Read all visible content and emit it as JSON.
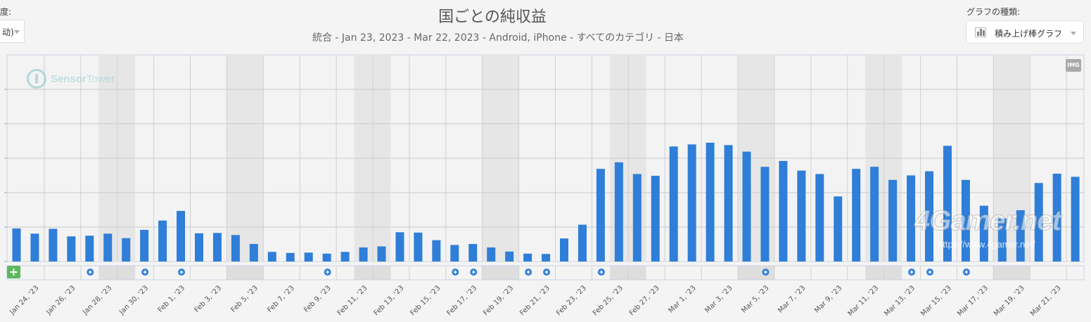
{
  "controls": {
    "left_label": "度:",
    "left_value": "动)",
    "right_label": "グラフの種類:",
    "right_value": "積み上げ棒グラフ"
  },
  "logo": {
    "brand": "Sensor",
    "brand_suffix": "Tower"
  },
  "img_badge": "IMG",
  "add_button": "+",
  "watermark": {
    "text": "4Gamer.net",
    "url": "https://www.4gamer.net/"
  },
  "colors": {
    "bar": "#2f7ed8",
    "event_marker": "#2f7ed8",
    "add_button": "#5cb85c",
    "weekend_band": "#e6e6e6"
  },
  "chart_data": {
    "type": "bar",
    "title": "国ごとの純収益",
    "subtitle": "統合 - Jan 23, 2023 - Mar 22, 2023 - Android, iPhone - すべてのカテゴリ - 日本",
    "xlabel": "",
    "ylabel": "",
    "grid": true,
    "y_tick_labels_visible": false,
    "ylim": [
      0,
      6
    ],
    "yticks": [
      0,
      1,
      2,
      3,
      4,
      5
    ],
    "categories": [
      "Jan 23",
      "Jan 24",
      "Jan 25",
      "Jan 26",
      "Jan 27",
      "Jan 28",
      "Jan 29",
      "Jan 30",
      "Jan 31",
      "Feb 1",
      "Feb 2",
      "Feb 3",
      "Feb 4",
      "Feb 5",
      "Feb 6",
      "Feb 7",
      "Feb 8",
      "Feb 9",
      "Feb 10",
      "Feb 11",
      "Feb 12",
      "Feb 13",
      "Feb 14",
      "Feb 15",
      "Feb 16",
      "Feb 17",
      "Feb 18",
      "Feb 19",
      "Feb 20",
      "Feb 21",
      "Feb 22",
      "Feb 23",
      "Feb 24",
      "Feb 25",
      "Feb 26",
      "Feb 27",
      "Feb 28",
      "Mar 1",
      "Mar 2",
      "Mar 3",
      "Mar 4",
      "Mar 5",
      "Mar 6",
      "Mar 7",
      "Mar 8",
      "Mar 9",
      "Mar 10",
      "Mar 11",
      "Mar 12",
      "Mar 13",
      "Mar 14",
      "Mar 15",
      "Mar 16",
      "Mar 17",
      "Mar 18",
      "Mar 19",
      "Mar 20",
      "Mar 21",
      "Mar 22"
    ],
    "values": [
      0.96,
      0.81,
      0.95,
      0.73,
      0.75,
      0.81,
      0.68,
      0.92,
      1.19,
      1.47,
      0.82,
      0.83,
      0.77,
      0.51,
      0.28,
      0.25,
      0.26,
      0.23,
      0.28,
      0.41,
      0.44,
      0.85,
      0.84,
      0.62,
      0.48,
      0.51,
      0.41,
      0.29,
      0.23,
      0.22,
      0.67,
      1.07,
      2.69,
      2.88,
      2.54,
      2.49,
      3.34,
      3.4,
      3.45,
      3.38,
      3.19,
      2.75,
      2.92,
      2.64,
      2.54,
      1.89,
      2.69,
      2.75,
      2.37,
      2.5,
      2.62,
      3.36,
      2.37,
      1.62,
      1.25,
      1.49,
      2.28,
      2.55,
      2.46
    ],
    "x_tick_labels": [
      "Jan 24, '23",
      "Jan 26, '23",
      "Jan 28, '23",
      "Jan 30, '23",
      "Feb 1, '23",
      "Feb 3, '23",
      "Feb 5, '23",
      "Feb 7, '23",
      "Feb 9, '23",
      "Feb 11, '23",
      "Feb 13, '23",
      "Feb 15, '23",
      "Feb 17, '23",
      "Feb 19, '23",
      "Feb 21, '23",
      "Feb 23, '23",
      "Feb 25, '23",
      "Feb 27, '23",
      "Mar 1, '23",
      "Mar 3, '23",
      "Mar 5, '23",
      "Mar 7, '23",
      "Mar 9, '23",
      "Mar 11, '23",
      "Mar 13, '23",
      "Mar 15, '23",
      "Mar 17, '23",
      "Mar 19, '23",
      "Mar 21, '23"
    ],
    "weekend_bands": [
      [
        "Jan 28",
        "Jan 29"
      ],
      [
        "Feb 4",
        "Feb 5"
      ],
      [
        "Feb 11",
        "Feb 12"
      ],
      [
        "Feb 18",
        "Feb 19"
      ],
      [
        "Feb 25",
        "Feb 26"
      ],
      [
        "Mar 4",
        "Mar 5"
      ],
      [
        "Mar 11",
        "Mar 12"
      ],
      [
        "Mar 18",
        "Mar 19"
      ]
    ],
    "event_markers": [
      "Jan 27",
      "Jan 30",
      "Feb 1",
      "Feb 9",
      "Feb 16",
      "Feb 17",
      "Feb 20",
      "Feb 21",
      "Feb 24",
      "Mar 5",
      "Mar 13",
      "Mar 14",
      "Mar 16"
    ]
  }
}
